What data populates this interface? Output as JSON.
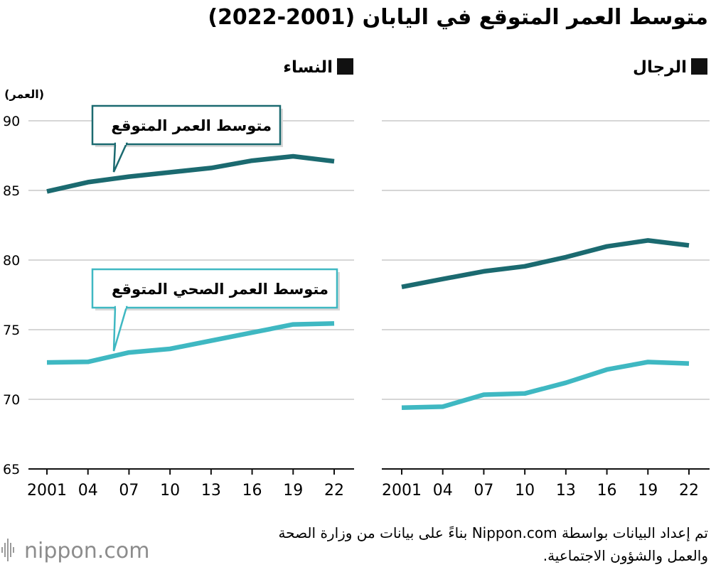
{
  "title": "متوسط العمر المتوقع في اليابان (2001-2022)",
  "unit_label": "(العمر)",
  "colors": {
    "life_expectancy": "#1b6a70",
    "healthy_life_expectancy": "#3fb8c2",
    "grid": "#c8c8c8",
    "axis": "#111111"
  },
  "chart_data": [
    {
      "type": "line",
      "panel_label": "النساء",
      "categories": [
        "2001",
        "04",
        "07",
        "10",
        "13",
        "16",
        "19",
        "22"
      ],
      "ylim": [
        65,
        90
      ],
      "yticks": [
        65,
        70,
        75,
        80,
        85,
        90
      ],
      "grid": true,
      "series": [
        {
          "name": "متوسط العمر المتوقع",
          "key": "life_expectancy",
          "values": [
            84.93,
            85.59,
            85.99,
            86.3,
            86.61,
            87.14,
            87.45,
            87.09
          ]
        },
        {
          "name": "متوسط العمر الصحي المتوقع",
          "key": "healthy_life_expectancy",
          "values": [
            72.65,
            72.69,
            73.36,
            73.62,
            74.21,
            74.79,
            75.38,
            75.45
          ]
        }
      ]
    },
    {
      "type": "line",
      "panel_label": "الرجال",
      "categories": [
        "2001",
        "04",
        "07",
        "10",
        "13",
        "16",
        "19",
        "22"
      ],
      "ylim": [
        65,
        90
      ],
      "yticks": [
        65,
        70,
        75,
        80,
        85,
        90
      ],
      "grid": true,
      "series": [
        {
          "name": "",
          "key": "life_expectancy",
          "values": [
            78.07,
            78.64,
            79.19,
            79.55,
            80.21,
            80.98,
            81.41,
            81.05
          ]
        },
        {
          "name": "",
          "key": "healthy_life_expectancy",
          "values": [
            69.4,
            69.47,
            70.33,
            70.42,
            71.19,
            72.14,
            72.68,
            72.57
          ]
        }
      ]
    }
  ],
  "source": {
    "line1": "تم إعداد البيانات بواسطة Nippon.com بناءً على بيانات من وزارة الصحة",
    "line2": "والعمل والشؤون الاجتماعية."
  },
  "logo": {
    "text": "nippon.com"
  }
}
